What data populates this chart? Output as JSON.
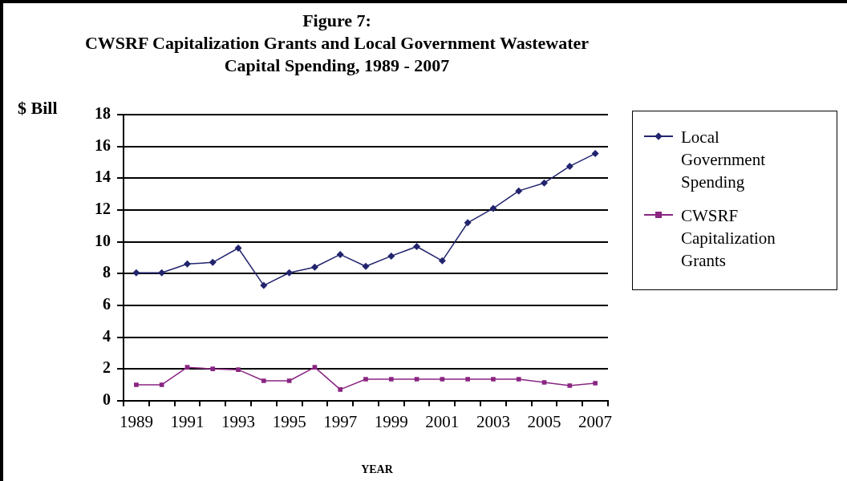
{
  "chart_data": {
    "type": "line",
    "title": "Figure 7:\nCWSRF Capitalization Grants and Local Government Wastewater\nCapital Spending, 1989 - 2007",
    "xlabel": "YEAR",
    "ylabel": "$ Bill",
    "categories": [
      "1989",
      null,
      "1991",
      null,
      "1993",
      null,
      "1995",
      null,
      "1997",
      null,
      "1999",
      null,
      "2001",
      null,
      "2003",
      null,
      "2005",
      null,
      "2007"
    ],
    "series": [
      {
        "name": "Local Government Spending",
        "color": "#22246e",
        "marker": "diamond",
        "values": [
          8.05,
          8.05,
          8.6,
          8.7,
          9.6,
          7.25,
          8.05,
          8.4,
          9.2,
          8.45,
          9.1,
          9.7,
          8.8,
          11.2,
          12.1,
          13.2,
          13.7,
          14.75,
          15.55
        ]
      },
      {
        "name": "CWSRF Capitalization Grants",
        "color": "#8a2582",
        "marker": "square",
        "values": [
          1.0,
          1.0,
          2.1,
          2.0,
          1.95,
          1.25,
          1.25,
          2.1,
          0.7,
          1.35,
          1.35,
          1.35,
          1.35,
          1.35,
          1.35,
          1.35,
          1.15,
          0.95,
          1.1
        ]
      }
    ],
    "ylim": [
      0,
      18
    ],
    "yticks": [
      0,
      2,
      4,
      6,
      8,
      10,
      12,
      14,
      16,
      18
    ],
    "grid": "y",
    "legend": "right",
    "line_style": "solid"
  }
}
